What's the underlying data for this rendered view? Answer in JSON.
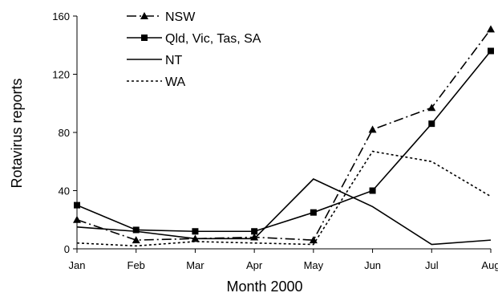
{
  "chart_data": {
    "type": "line",
    "title": "",
    "xlabel": "Month 2000",
    "ylabel": "Rotavirus reports",
    "categories": [
      "Jan",
      "Feb",
      "Mar",
      "Apr",
      "May",
      "Jun",
      "Jul",
      "Aug"
    ],
    "ylim": [
      0,
      160
    ],
    "yticks": [
      0,
      40,
      80,
      120,
      160
    ],
    "grid": false,
    "legend_position": "top-left",
    "series": [
      {
        "name": "NSW",
        "style": "dash-dot",
        "marker": "triangle",
        "values": [
          20,
          6,
          7,
          8,
          6,
          82,
          97,
          151
        ]
      },
      {
        "name": "Qld, Vic, Tas, SA",
        "style": "solid",
        "marker": "square",
        "values": [
          30,
          13,
          12,
          12,
          25,
          40,
          86,
          136
        ]
      },
      {
        "name": "NT",
        "style": "solid",
        "marker": "none",
        "values": [
          15,
          12,
          7,
          7,
          48,
          29,
          3,
          6
        ]
      },
      {
        "name": "WA",
        "style": "dotted",
        "marker": "none",
        "values": [
          4,
          2,
          5,
          4,
          3,
          67,
          60,
          36
        ]
      }
    ]
  }
}
